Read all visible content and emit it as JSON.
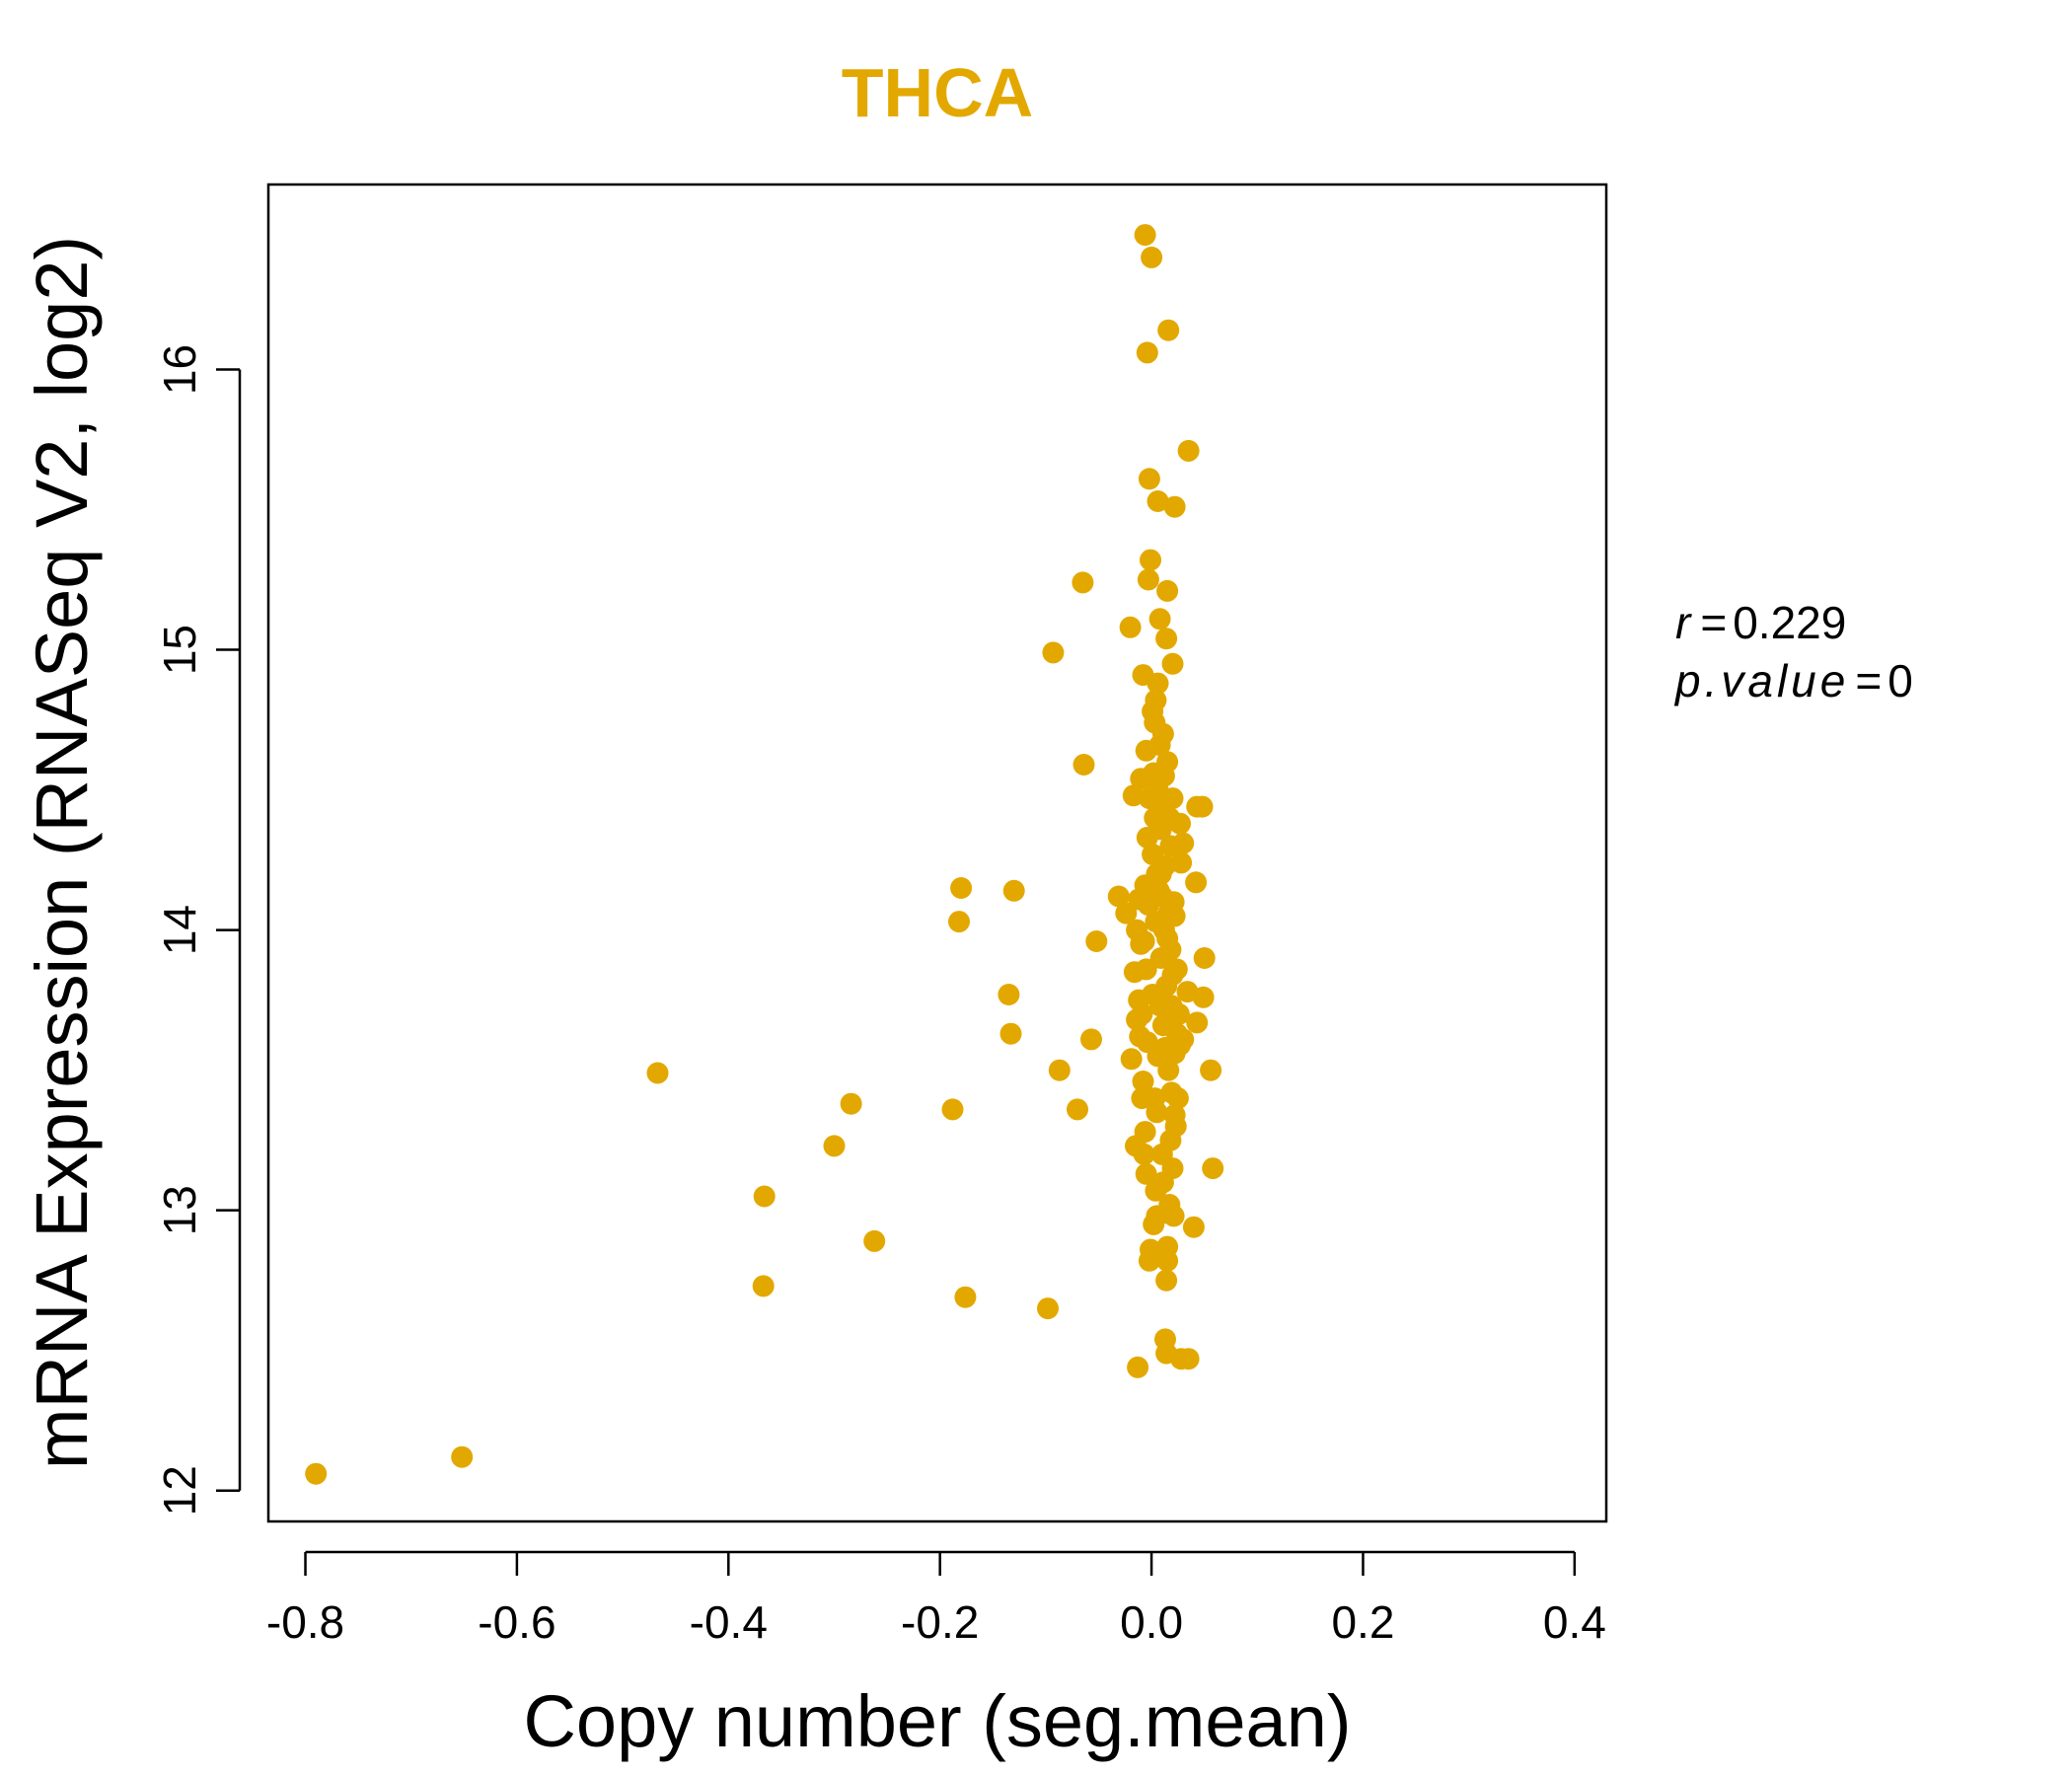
{
  "accent_color": "#E3A800",
  "chart_data": {
    "type": "scatter",
    "title": "THCA",
    "xlabel": "Copy number (seg.mean)",
    "ylabel": "mRNA Expression (RNASeq V2, log2)",
    "xlim": [
      -0.835,
      0.43
    ],
    "ylim": [
      11.89,
      16.66
    ],
    "x_ticks": [
      -0.8,
      -0.6,
      -0.4,
      -0.2,
      0.0,
      0.2,
      0.4
    ],
    "x_tick_labels": [
      "-0.8",
      "-0.6",
      "-0.4",
      "-0.2",
      "0.0",
      "0.2",
      "0.4"
    ],
    "y_ticks": [
      12,
      13,
      14,
      15,
      16
    ],
    "y_tick_labels": [
      "12",
      "13",
      "14",
      "15",
      "16"
    ],
    "annotation": {
      "r_label": "r",
      "r_value": "0.229",
      "p_label": "p.value",
      "p_value": "0"
    },
    "points": [
      {
        "x": -0.79,
        "y": 12.06
      },
      {
        "x": -0.652,
        "y": 12.12
      },
      {
        "x": -0.467,
        "y": 13.49
      },
      {
        "x": -0.366,
        "y": 13.05
      },
      {
        "x": -0.367,
        "y": 12.73
      },
      {
        "x": -0.284,
        "y": 13.38
      },
      {
        "x": -0.3,
        "y": 13.23
      },
      {
        "x": -0.262,
        "y": 12.89
      },
      {
        "x": -0.188,
        "y": 13.36
      },
      {
        "x": -0.18,
        "y": 14.15
      },
      {
        "x": -0.182,
        "y": 14.03
      },
      {
        "x": -0.176,
        "y": 12.69
      },
      {
        "x": -0.13,
        "y": 14.14
      },
      {
        "x": -0.135,
        "y": 13.77
      },
      {
        "x": -0.133,
        "y": 13.63
      },
      {
        "x": -0.098,
        "y": 12.65
      },
      {
        "x": -0.093,
        "y": 14.99
      },
      {
        "x": -0.087,
        "y": 13.5
      },
      {
        "x": -0.07,
        "y": 13.36
      },
      {
        "x": -0.065,
        "y": 15.24
      },
      {
        "x": -0.064,
        "y": 14.59
      },
      {
        "x": -0.057,
        "y": 13.61
      },
      {
        "x": -0.052,
        "y": 13.96
      },
      {
        "x": -0.031,
        "y": 14.12
      },
      {
        "x": -0.024,
        "y": 14.06
      },
      {
        "x": -0.02,
        "y": 15.08
      },
      {
        "x": -0.019,
        "y": 13.54
      },
      {
        "x": -0.015,
        "y": 13.23
      },
      {
        "x": -0.013,
        "y": 12.44
      },
      {
        "x": -0.014,
        "y": 13.68
      },
      {
        "x": -0.01,
        "y": 13.95
      },
      {
        "x": -0.008,
        "y": 14.91
      },
      {
        "x": -0.006,
        "y": 16.48
      },
      {
        "x": -0.004,
        "y": 16.06
      },
      {
        "x": 0.0,
        "y": 16.4
      },
      {
        "x": -0.002,
        "y": 15.61
      },
      {
        "x": 0.006,
        "y": 15.53
      },
      {
        "x": 0.022,
        "y": 15.51
      },
      {
        "x": 0.035,
        "y": 15.71
      },
      {
        "x": 0.016,
        "y": 16.14
      },
      {
        "x": -0.001,
        "y": 15.32
      },
      {
        "x": -0.003,
        "y": 15.25
      },
      {
        "x": 0.015,
        "y": 15.21
      },
      {
        "x": 0.008,
        "y": 15.11
      },
      {
        "x": 0.014,
        "y": 15.04
      },
      {
        "x": 0.02,
        "y": 14.95
      },
      {
        "x": 0.004,
        "y": 14.82
      },
      {
        "x": 0.003,
        "y": 14.74
      },
      {
        "x": 0.011,
        "y": 14.7
      },
      {
        "x": -0.005,
        "y": 14.64
      },
      {
        "x": 0.015,
        "y": 14.6
      },
      {
        "x": -0.01,
        "y": 14.54
      },
      {
        "x": -0.017,
        "y": 14.48
      },
      {
        "x": 0.02,
        "y": 14.47
      },
      {
        "x": 0.043,
        "y": 14.44
      },
      {
        "x": 0.048,
        "y": 14.44
      },
      {
        "x": 0.027,
        "y": 14.38
      },
      {
        "x": 0.03,
        "y": 14.31
      },
      {
        "x": 0.028,
        "y": 14.24
      },
      {
        "x": 0.042,
        "y": 14.17
      },
      {
        "x": -0.012,
        "y": 14.11
      },
      {
        "x": 0.009,
        "y": 14.2
      },
      {
        "x": 0.012,
        "y": 14.0
      },
      {
        "x": 0.05,
        "y": 13.9
      },
      {
        "x": 0.049,
        "y": 13.76
      },
      {
        "x": 0.034,
        "y": 13.78
      },
      {
        "x": 0.043,
        "y": 13.67
      },
      {
        "x": 0.03,
        "y": 13.61
      },
      {
        "x": 0.056,
        "y": 13.5
      },
      {
        "x": 0.022,
        "y": 13.56
      },
      {
        "x": 0.058,
        "y": 13.15
      },
      {
        "x": 0.04,
        "y": 12.94
      },
      {
        "x": 0.028,
        "y": 12.47
      },
      {
        "x": 0.035,
        "y": 12.47
      },
      {
        "x": 0.014,
        "y": 12.49
      },
      {
        "x": 0.013,
        "y": 12.54
      },
      {
        "x": 0.014,
        "y": 12.75
      },
      {
        "x": 0.015,
        "y": 12.82
      },
      {
        "x": 0.015,
        "y": 12.87
      },
      {
        "x": -0.002,
        "y": 12.82
      },
      {
        "x": -0.001,
        "y": 12.86
      },
      {
        "x": 0.002,
        "y": 12.95
      },
      {
        "x": 0.005,
        "y": 12.98
      },
      {
        "x": 0.015,
        "y": 12.99
      },
      {
        "x": 0.021,
        "y": 12.98
      },
      {
        "x": 0.004,
        "y": 13.07
      },
      {
        "x": -0.005,
        "y": 13.13
      },
      {
        "x": 0.02,
        "y": 13.15
      },
      {
        "x": 0.01,
        "y": 13.2
      },
      {
        "x": 0.018,
        "y": 13.25
      },
      {
        "x": -0.006,
        "y": 13.28
      },
      {
        "x": 0.022,
        "y": 13.34
      },
      {
        "x": 0.003,
        "y": 13.4
      },
      {
        "x": 0.019,
        "y": 13.42
      },
      {
        "x": -0.008,
        "y": 13.46
      },
      {
        "x": 0.016,
        "y": 13.5
      },
      {
        "x": 0.006,
        "y": 13.55
      },
      {
        "x": -0.004,
        "y": 13.6
      },
      {
        "x": 0.024,
        "y": 13.63
      },
      {
        "x": 0.011,
        "y": 13.66
      },
      {
        "x": -0.009,
        "y": 13.7
      },
      {
        "x": 0.019,
        "y": 13.73
      },
      {
        "x": 0.001,
        "y": 13.77
      },
      {
        "x": -0.012,
        "y": 13.75
      },
      {
        "x": 0.014,
        "y": 13.8
      },
      {
        "x": 0.02,
        "y": 13.84
      },
      {
        "x": -0.005,
        "y": 13.86
      },
      {
        "x": 0.009,
        "y": 13.9
      },
      {
        "x": 0.018,
        "y": 13.93
      },
      {
        "x": -0.007,
        "y": 13.96
      },
      {
        "x": 0.004,
        "y": 14.03
      },
      {
        "x": 0.016,
        "y": 14.06
      },
      {
        "x": -0.003,
        "y": 14.09
      },
      {
        "x": 0.021,
        "y": 14.1
      },
      {
        "x": 0.007,
        "y": 14.14
      },
      {
        "x": -0.006,
        "y": 14.16
      },
      {
        "x": 0.013,
        "y": 14.23
      },
      {
        "x": 0.001,
        "y": 14.27
      },
      {
        "x": 0.018,
        "y": 14.3
      },
      {
        "x": -0.004,
        "y": 14.33
      },
      {
        "x": 0.009,
        "y": 14.36
      },
      {
        "x": 0.003,
        "y": 14.4
      },
      {
        "x": 0.012,
        "y": 14.43
      },
      {
        "x": -0.002,
        "y": 14.47
      },
      {
        "x": 0.006,
        "y": 14.5
      },
      {
        "x": 0.002,
        "y": 14.56
      },
      {
        "x": 0.008,
        "y": 14.66
      },
      {
        "x": 0.001,
        "y": 14.78
      },
      {
        "x": 0.027,
        "y": 13.59
      },
      {
        "x": 0.025,
        "y": 13.4
      },
      {
        "x": 0.023,
        "y": 13.3
      },
      {
        "x": 0.026,
        "y": 13.7
      },
      {
        "x": 0.024,
        "y": 13.86
      },
      {
        "x": 0.022,
        "y": 14.05
      },
      {
        "x": -0.016,
        "y": 13.85
      },
      {
        "x": -0.014,
        "y": 14.0
      },
      {
        "x": -0.011,
        "y": 13.62
      },
      {
        "x": -0.009,
        "y": 13.4
      },
      {
        "x": -0.007,
        "y": 13.2
      },
      {
        "x": 0.011,
        "y": 13.1
      },
      {
        "x": 0.017,
        "y": 13.02
      },
      {
        "x": 0.005,
        "y": 13.35
      },
      {
        "x": 0.013,
        "y": 13.58
      },
      {
        "x": 0.008,
        "y": 13.73
      },
      {
        "x": 0.015,
        "y": 13.97
      },
      {
        "x": 0.01,
        "y": 14.12
      },
      {
        "x": 0.005,
        "y": 14.2
      },
      {
        "x": 0.017,
        "y": 14.4
      },
      {
        "x": 0.012,
        "y": 14.55
      },
      {
        "x": 0.006,
        "y": 14.88
      }
    ]
  }
}
